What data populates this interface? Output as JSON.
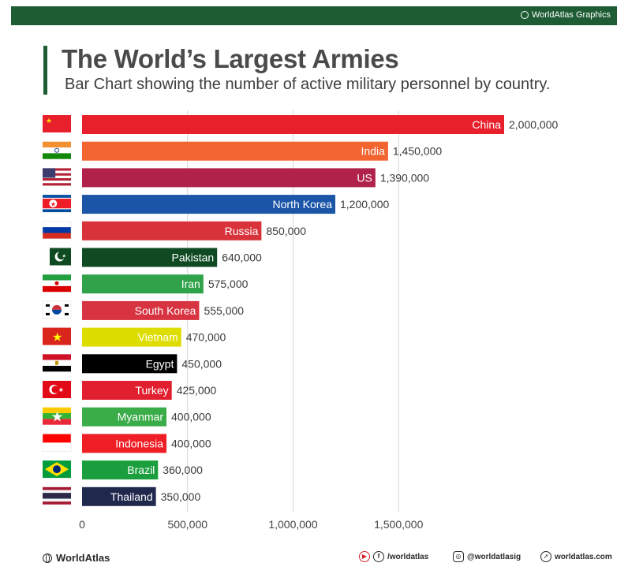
{
  "header": {
    "brand_tag": "WorldAtlas Graphics",
    "title": "The World’s Largest Armies",
    "subtitle": "Bar Chart showing the number of active military personnel by country."
  },
  "chart_data": {
    "type": "bar",
    "orientation": "horizontal",
    "title": "The World’s Largest Armies",
    "subtitle": "Bar Chart showing the number of active military personnel by country.",
    "xlim": [
      0,
      2000000
    ],
    "xticks": [
      0,
      500000,
      1000000,
      1500000
    ],
    "xtick_labels": [
      "0",
      "500,000",
      "1,000,000",
      "1,500,000"
    ],
    "grid": "vertical",
    "categories": [
      "China",
      "India",
      "US",
      "North Korea",
      "Russia",
      "Pakistan",
      "Iran",
      "South Korea",
      "Vietnam",
      "Egypt",
      "Turkey",
      "Myanmar",
      "Indonesia",
      "Brazil",
      "Thailand"
    ],
    "values": [
      2000000,
      1450000,
      1390000,
      1200000,
      850000,
      640000,
      575000,
      555000,
      470000,
      450000,
      425000,
      400000,
      400000,
      360000,
      350000
    ],
    "value_labels": [
      "2,000,000",
      "1,450,000",
      "1,390,000",
      "1,200,000",
      "850,000",
      "640,000",
      "575,000",
      "555,000",
      "470,000",
      "450,000",
      "425,000",
      "400,000",
      "400,000",
      "360,000",
      "350,000"
    ],
    "colors": [
      "#e8202c",
      "#f26430",
      "#b1224a",
      "#1a55a8",
      "#d8323a",
      "#0f4a23",
      "#2fa24a",
      "#d73340",
      "#dedd00",
      "#000000",
      "#e11f2f",
      "#3aac48",
      "#ef1d24",
      "#1b9e3e",
      "#20284e"
    ],
    "flags": [
      "flag-china-icon",
      "flag-india-icon",
      "flag-us-icon",
      "flag-north-korea-icon",
      "flag-russia-icon",
      "flag-pakistan-icon",
      "flag-iran-icon",
      "flag-south-korea-icon",
      "flag-vietnam-icon",
      "flag-egypt-icon",
      "flag-turkey-icon",
      "flag-myanmar-icon",
      "flag-indonesia-icon",
      "flag-brazil-icon",
      "flag-thailand-icon"
    ]
  },
  "footer": {
    "brand": "WorldAtlas",
    "facebook": "/worldatlas",
    "instagram": "@worldatlasig",
    "website": "worldatlas.com"
  }
}
